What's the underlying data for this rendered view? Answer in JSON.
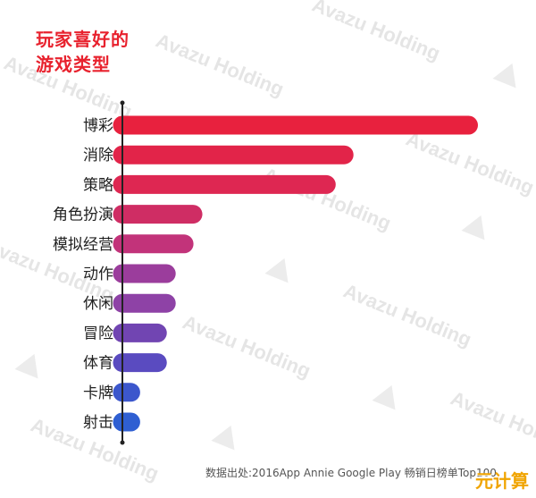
{
  "title_lines": [
    "玩家喜好的",
    "游戏类型"
  ],
  "source_text": "数据出处:2016App Annie Google Play 畅销日榜单Top100",
  "watermark_text": "Avazu Holding",
  "corner_logo_text": "元计算",
  "chart_data": {
    "type": "bar",
    "orientation": "horizontal",
    "categories": [
      "博彩",
      "消除",
      "策略",
      "角色扮演",
      "模拟经营",
      "动作",
      "休闲",
      "冒险",
      "体育",
      "卡牌",
      "射击"
    ],
    "values": [
      40,
      26,
      24,
      9,
      8,
      6,
      6,
      5,
      5,
      2,
      2
    ],
    "bar_colors": [
      "#e8213e",
      "#e22449",
      "#de2752",
      "#cf2d64",
      "#c2337a",
      "#9b3d9c",
      "#8e42a6",
      "#7145b2",
      "#5a4bc0",
      "#3c57cc",
      "#2f5fd2"
    ],
    "xlim": [
      0,
      40
    ],
    "grid": false,
    "legend": "none"
  }
}
